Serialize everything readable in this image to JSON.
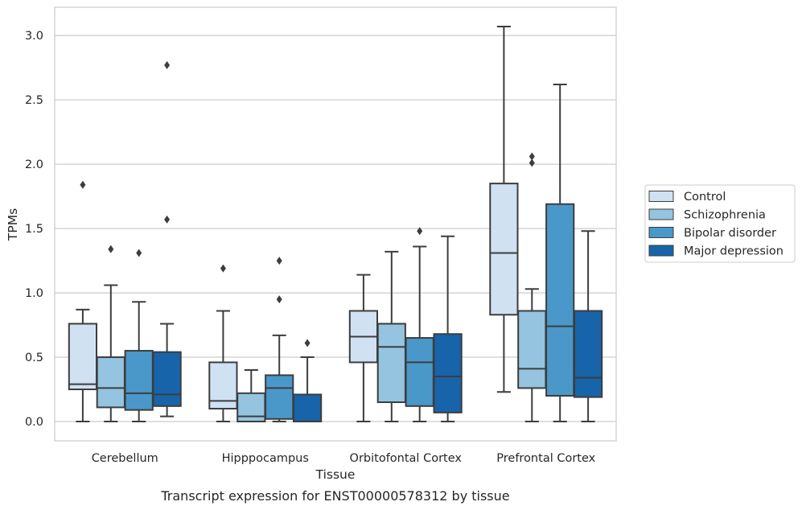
{
  "chart_data": {
    "type": "box",
    "caption": "Transcript expression for ENST00000578312 by tissue",
    "xlabel": "Tissue",
    "ylabel": "TPMs",
    "ylim": [
      -0.15,
      3.22
    ],
    "yticks": [
      "0.0",
      "0.5",
      "1.0",
      "1.5",
      "2.0",
      "2.5",
      "3.0"
    ],
    "categories": [
      "Cerebellum",
      "Hipppocampus",
      "Orbitofontal Cortex",
      "Prefrontal Cortex"
    ],
    "grid": true,
    "legend_position": "right",
    "series": [
      {
        "name": "Control",
        "color": "#d0e1f2",
        "boxes": [
          {
            "whislo": 0.0,
            "q1": 0.25,
            "med": 0.29,
            "q3": 0.76,
            "whishi": 0.87,
            "fliers": [
              1.84
            ]
          },
          {
            "whislo": 0.0,
            "q1": 0.1,
            "med": 0.16,
            "q3": 0.46,
            "whishi": 0.86,
            "fliers": [
              1.19
            ]
          },
          {
            "whislo": 0.0,
            "q1": 0.46,
            "med": 0.66,
            "q3": 0.86,
            "whishi": 1.14,
            "fliers": []
          },
          {
            "whislo": 0.23,
            "q1": 0.83,
            "med": 1.31,
            "q3": 1.85,
            "whishi": 3.07,
            "fliers": []
          }
        ]
      },
      {
        "name": "Schizophrenia",
        "color": "#94c4df",
        "boxes": [
          {
            "whislo": 0.0,
            "q1": 0.11,
            "med": 0.26,
            "q3": 0.5,
            "whishi": 1.06,
            "fliers": [
              1.34
            ]
          },
          {
            "whislo": 0.0,
            "q1": 0.0,
            "med": 0.04,
            "q3": 0.22,
            "whishi": 0.4,
            "fliers": []
          },
          {
            "whislo": 0.0,
            "q1": 0.15,
            "med": 0.58,
            "q3": 0.76,
            "whishi": 1.32,
            "fliers": []
          },
          {
            "whislo": 0.0,
            "q1": 0.26,
            "med": 0.41,
            "q3": 0.86,
            "whishi": 1.03,
            "fliers": [
              2.01,
              2.06
            ]
          }
        ]
      },
      {
        "name": "Bipolar disorder",
        "color": "#4a98c9",
        "boxes": [
          {
            "whislo": 0.0,
            "q1": 0.09,
            "med": 0.22,
            "q3": 0.55,
            "whishi": 0.93,
            "fliers": [
              1.31
            ]
          },
          {
            "whislo": 0.0,
            "q1": 0.02,
            "med": 0.26,
            "q3": 0.36,
            "whishi": 0.67,
            "fliers": [
              0.95,
              1.25
            ]
          },
          {
            "whislo": 0.0,
            "q1": 0.12,
            "med": 0.46,
            "q3": 0.65,
            "whishi": 1.36,
            "fliers": [
              1.48
            ]
          },
          {
            "whislo": 0.0,
            "q1": 0.2,
            "med": 0.74,
            "q3": 1.69,
            "whishi": 2.62,
            "fliers": []
          }
        ]
      },
      {
        "name": "Major depression",
        "color": "#1764ab",
        "boxes": [
          {
            "whislo": 0.04,
            "q1": 0.12,
            "med": 0.21,
            "q3": 0.54,
            "whishi": 0.76,
            "fliers": [
              1.57,
              2.77
            ]
          },
          {
            "whislo": 0.0,
            "q1": 0.0,
            "med": 0.0,
            "q3": 0.21,
            "whishi": 0.5,
            "fliers": [
              0.61
            ]
          },
          {
            "whislo": 0.0,
            "q1": 0.07,
            "med": 0.35,
            "q3": 0.68,
            "whishi": 1.44,
            "fliers": []
          },
          {
            "whislo": 0.0,
            "q1": 0.19,
            "med": 0.34,
            "q3": 0.86,
            "whishi": 1.48,
            "fliers": []
          }
        ]
      }
    ]
  }
}
